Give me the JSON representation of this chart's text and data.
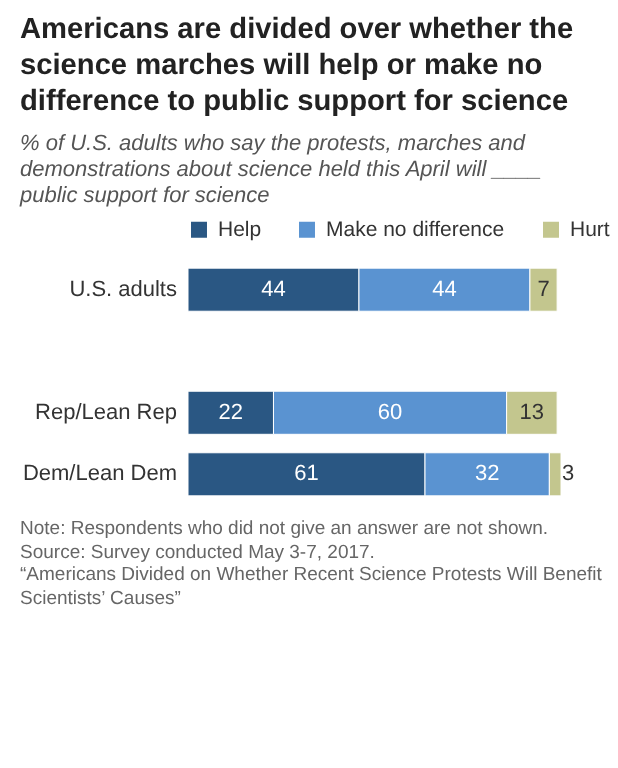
{
  "chart_data": {
    "type": "bar",
    "orientation": "horizontal",
    "stacked": true,
    "title": "Americans are divided over whether the science marches will help or make no difference to public support for science",
    "subtitle": "% of U.S. adults who say the protests, marches and demonstrations about science held this April will ____ public support for science",
    "categories": [
      "U.S. adults",
      null,
      "Rep/Lean Rep",
      "Dem/Lean Dem"
    ],
    "series": [
      {
        "name": "Help",
        "color": "#2a5783",
        "values": [
          44,
          null,
          22,
          61
        ]
      },
      {
        "name": "Make no difference",
        "color": "#5a93d1",
        "values": [
          44,
          null,
          60,
          32
        ]
      },
      {
        "name": "Hurt",
        "color": "#c3c68e",
        "values": [
          7,
          null,
          13,
          3
        ]
      }
    ],
    "data_labels": true,
    "legend": "top",
    "tick_labels": "y",
    "annotations": [
      "Note: Respondents who did not give an answer are not shown.",
      "Source: Survey conducted May 3-7, 2017.",
      "“Americans Divided on Whether Recent Science Protests Will Benefit Scientists’ Causes”"
    ]
  }
}
